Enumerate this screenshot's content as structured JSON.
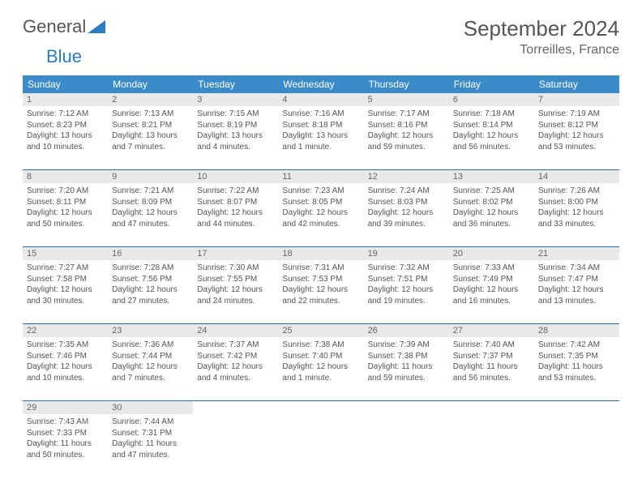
{
  "brand": {
    "part1": "General",
    "part2": "Blue"
  },
  "title": "September 2024",
  "location": "Torreilles, France",
  "colors": {
    "header_bg": "#3b8bc9",
    "header_text": "#ffffff",
    "daynum_bg": "#e9e9e9",
    "row_border": "#2a6fa5",
    "text": "#555555",
    "logo_blue": "#2d7bc0"
  },
  "weekdays": [
    "Sunday",
    "Monday",
    "Tuesday",
    "Wednesday",
    "Thursday",
    "Friday",
    "Saturday"
  ],
  "weeks": [
    [
      {
        "n": "1",
        "sr": "Sunrise: 7:12 AM",
        "ss": "Sunset: 8:23 PM",
        "dl": "Daylight: 13 hours and 10 minutes."
      },
      {
        "n": "2",
        "sr": "Sunrise: 7:13 AM",
        "ss": "Sunset: 8:21 PM",
        "dl": "Daylight: 13 hours and 7 minutes."
      },
      {
        "n": "3",
        "sr": "Sunrise: 7:15 AM",
        "ss": "Sunset: 8:19 PM",
        "dl": "Daylight: 13 hours and 4 minutes."
      },
      {
        "n": "4",
        "sr": "Sunrise: 7:16 AM",
        "ss": "Sunset: 8:18 PM",
        "dl": "Daylight: 13 hours and 1 minute."
      },
      {
        "n": "5",
        "sr": "Sunrise: 7:17 AM",
        "ss": "Sunset: 8:16 PM",
        "dl": "Daylight: 12 hours and 59 minutes."
      },
      {
        "n": "6",
        "sr": "Sunrise: 7:18 AM",
        "ss": "Sunset: 8:14 PM",
        "dl": "Daylight: 12 hours and 56 minutes."
      },
      {
        "n": "7",
        "sr": "Sunrise: 7:19 AM",
        "ss": "Sunset: 8:12 PM",
        "dl": "Daylight: 12 hours and 53 minutes."
      }
    ],
    [
      {
        "n": "8",
        "sr": "Sunrise: 7:20 AM",
        "ss": "Sunset: 8:11 PM",
        "dl": "Daylight: 12 hours and 50 minutes."
      },
      {
        "n": "9",
        "sr": "Sunrise: 7:21 AM",
        "ss": "Sunset: 8:09 PM",
        "dl": "Daylight: 12 hours and 47 minutes."
      },
      {
        "n": "10",
        "sr": "Sunrise: 7:22 AM",
        "ss": "Sunset: 8:07 PM",
        "dl": "Daylight: 12 hours and 44 minutes."
      },
      {
        "n": "11",
        "sr": "Sunrise: 7:23 AM",
        "ss": "Sunset: 8:05 PM",
        "dl": "Daylight: 12 hours and 42 minutes."
      },
      {
        "n": "12",
        "sr": "Sunrise: 7:24 AM",
        "ss": "Sunset: 8:03 PM",
        "dl": "Daylight: 12 hours and 39 minutes."
      },
      {
        "n": "13",
        "sr": "Sunrise: 7:25 AM",
        "ss": "Sunset: 8:02 PM",
        "dl": "Daylight: 12 hours and 36 minutes."
      },
      {
        "n": "14",
        "sr": "Sunrise: 7:26 AM",
        "ss": "Sunset: 8:00 PM",
        "dl": "Daylight: 12 hours and 33 minutes."
      }
    ],
    [
      {
        "n": "15",
        "sr": "Sunrise: 7:27 AM",
        "ss": "Sunset: 7:58 PM",
        "dl": "Daylight: 12 hours and 30 minutes."
      },
      {
        "n": "16",
        "sr": "Sunrise: 7:28 AM",
        "ss": "Sunset: 7:56 PM",
        "dl": "Daylight: 12 hours and 27 minutes."
      },
      {
        "n": "17",
        "sr": "Sunrise: 7:30 AM",
        "ss": "Sunset: 7:55 PM",
        "dl": "Daylight: 12 hours and 24 minutes."
      },
      {
        "n": "18",
        "sr": "Sunrise: 7:31 AM",
        "ss": "Sunset: 7:53 PM",
        "dl": "Daylight: 12 hours and 22 minutes."
      },
      {
        "n": "19",
        "sr": "Sunrise: 7:32 AM",
        "ss": "Sunset: 7:51 PM",
        "dl": "Daylight: 12 hours and 19 minutes."
      },
      {
        "n": "20",
        "sr": "Sunrise: 7:33 AM",
        "ss": "Sunset: 7:49 PM",
        "dl": "Daylight: 12 hours and 16 minutes."
      },
      {
        "n": "21",
        "sr": "Sunrise: 7:34 AM",
        "ss": "Sunset: 7:47 PM",
        "dl": "Daylight: 12 hours and 13 minutes."
      }
    ],
    [
      {
        "n": "22",
        "sr": "Sunrise: 7:35 AM",
        "ss": "Sunset: 7:46 PM",
        "dl": "Daylight: 12 hours and 10 minutes."
      },
      {
        "n": "23",
        "sr": "Sunrise: 7:36 AM",
        "ss": "Sunset: 7:44 PM",
        "dl": "Daylight: 12 hours and 7 minutes."
      },
      {
        "n": "24",
        "sr": "Sunrise: 7:37 AM",
        "ss": "Sunset: 7:42 PM",
        "dl": "Daylight: 12 hours and 4 minutes."
      },
      {
        "n": "25",
        "sr": "Sunrise: 7:38 AM",
        "ss": "Sunset: 7:40 PM",
        "dl": "Daylight: 12 hours and 1 minute."
      },
      {
        "n": "26",
        "sr": "Sunrise: 7:39 AM",
        "ss": "Sunset: 7:38 PM",
        "dl": "Daylight: 11 hours and 59 minutes."
      },
      {
        "n": "27",
        "sr": "Sunrise: 7:40 AM",
        "ss": "Sunset: 7:37 PM",
        "dl": "Daylight: 11 hours and 56 minutes."
      },
      {
        "n": "28",
        "sr": "Sunrise: 7:42 AM",
        "ss": "Sunset: 7:35 PM",
        "dl": "Daylight: 11 hours and 53 minutes."
      }
    ],
    [
      {
        "n": "29",
        "sr": "Sunrise: 7:43 AM",
        "ss": "Sunset: 7:33 PM",
        "dl": "Daylight: 11 hours and 50 minutes."
      },
      {
        "n": "30",
        "sr": "Sunrise: 7:44 AM",
        "ss": "Sunset: 7:31 PM",
        "dl": "Daylight: 11 hours and 47 minutes."
      },
      null,
      null,
      null,
      null,
      null
    ]
  ]
}
